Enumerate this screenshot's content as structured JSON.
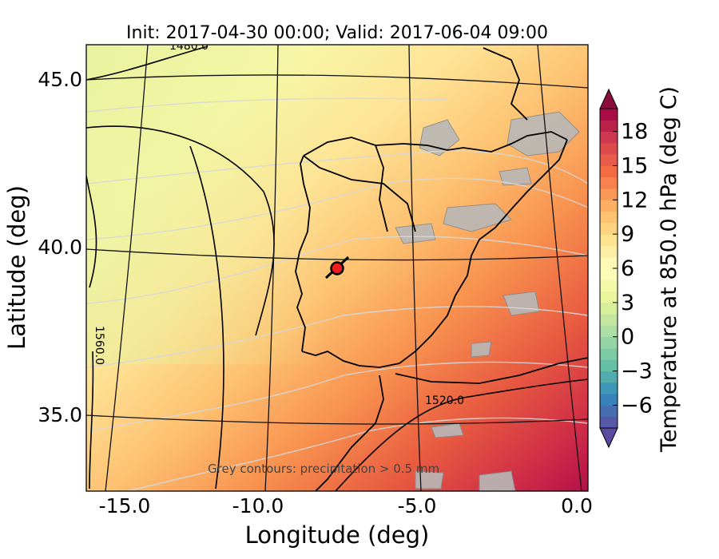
{
  "title": "Init: 2017-04-30 00:00; Valid: 2017-06-04 09:00",
  "map": {
    "xlabel": "Longitude (deg)",
    "ylabel": "Latitude (deg)",
    "xticks": [
      "-15.0",
      "-10.0",
      "-5.0",
      "0.0"
    ],
    "yticks": [
      "45.0",
      "40.0",
      "35.0"
    ],
    "xlim": [
      -15.8,
      0.3
    ],
    "ylim": [
      32.6,
      46.4
    ],
    "contour_labels": [
      "1480.0",
      "1560.0",
      "1520.0"
    ],
    "note": "Grey contours: precipitation > 0.5 mm",
    "marker": {
      "lon": -7.4,
      "lat": 39.3,
      "color": "#ee1c1c"
    }
  },
  "colorbar": {
    "label": "Temperature at 850.0 hPa (deg C)",
    "ticks": [
      "18",
      "15",
      "12",
      "9",
      "6",
      "3",
      "0",
      "−3",
      "−6"
    ],
    "range": [
      -8,
      20
    ],
    "colormap": "Spectral_r",
    "extend": "both"
  },
  "colors": {
    "hot": "#a50026",
    "warm": "#f46d43",
    "mild": "#fee090",
    "neutral": "#ffffbf",
    "cool": "#abdda4",
    "cold": "#3288bd",
    "coldest": "#5e4fa2",
    "precip": "#cfcfcf"
  }
}
